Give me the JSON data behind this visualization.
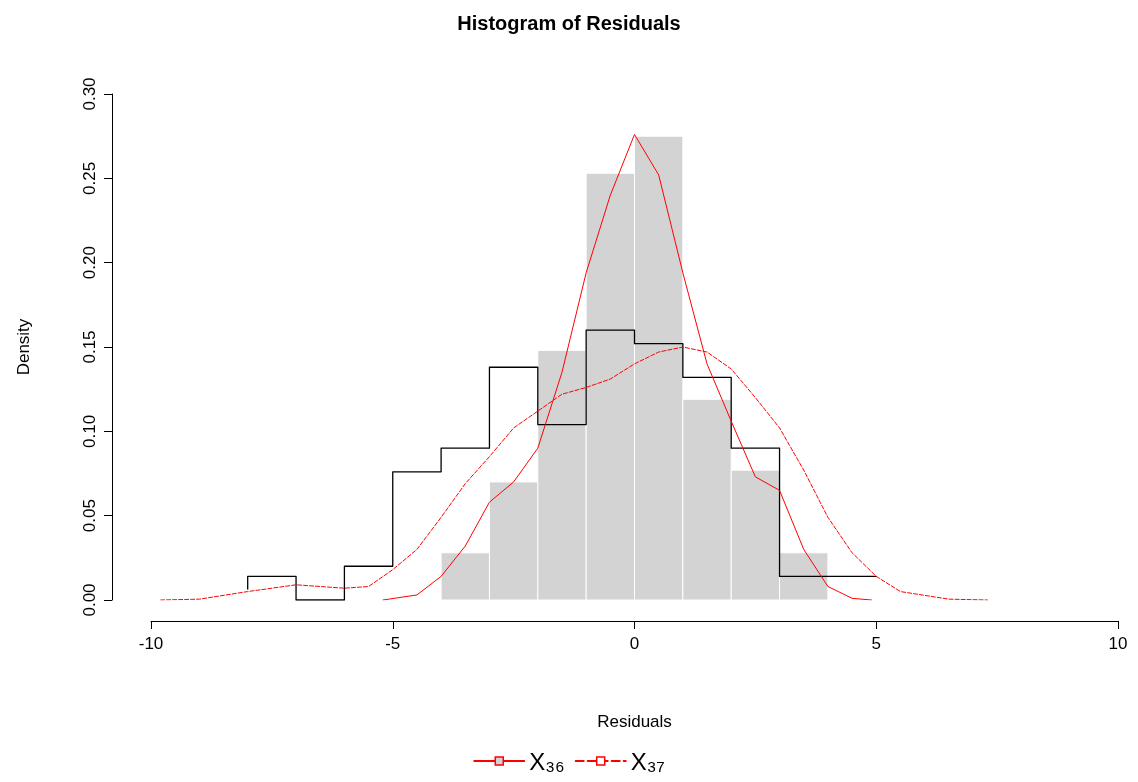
{
  "chart_data": {
    "type": "histogram",
    "title": "Histogram of Residuals",
    "xlabel": "Residuals",
    "ylabel": "Density",
    "xlim": [
      -10,
      10
    ],
    "xticks": [
      -10,
      -5,
      0,
      5,
      10
    ],
    "ylim": [
      0,
      0.3
    ],
    "yticks": [
      {
        "value": 0,
        "label": "0.00"
      },
      {
        "value": 0.05,
        "label": "0.05"
      },
      {
        "value": 0.1,
        "label": "0.10"
      },
      {
        "value": 0.15,
        "label": "0.15"
      },
      {
        "value": 0.2,
        "label": "0.20"
      },
      {
        "value": 0.25,
        "label": "0.25"
      },
      {
        "value": 0.3,
        "label": "0.30"
      }
    ],
    "grid": false,
    "legend": "bottom",
    "series": [
      {
        "color": "#d3d3d3",
        "bins": [
          -4,
          -3,
          -2,
          -1,
          0,
          1,
          2,
          3,
          4
        ],
        "values": [
          0.028,
          0.07,
          0.148,
          0.253,
          0.275,
          0.119,
          0.077,
          0.028
        ]
      },
      {
        "type": "step",
        "color": "#000000",
        "x": [
          -8,
          -7,
          -6,
          -5,
          -4,
          -3,
          -2,
          -1,
          0,
          1,
          2,
          3,
          4,
          5
        ],
        "values": [
          0.0065,
          0.014,
          0,
          0.02,
          0.076,
          0.09,
          0.138,
          0.104,
          0.16,
          0.152,
          0.132,
          0.09,
          0.014,
          0.014
        ]
      },
      {
        "type": "line",
        "name": "X₃₆",
        "color": "#ff0000",
        "line_style": "solid",
        "x": [
          -5.2,
          -4.5,
          -4,
          -3.5,
          -3,
          -2.5,
          -2,
          -1.5,
          -1,
          -0.5,
          0,
          0.5,
          1,
          1.5,
          2,
          2.5,
          3,
          3.5,
          4,
          4.5,
          4.9
        ],
        "values": [
          0,
          0.003,
          0.014,
          0.032,
          0.058,
          0.07,
          0.09,
          0.135,
          0.194,
          0.24,
          0.276,
          0.252,
          0.194,
          0.14,
          0.106,
          0.073,
          0.065,
          0.03,
          0.008,
          0.001,
          0
        ]
      },
      {
        "type": "line",
        "name": "X₃₇",
        "color": "#ff0000",
        "line_style": "dashed",
        "x": [
          -9.8,
          -9,
          -8,
          -7,
          -6,
          -5.5,
          -5,
          -4.5,
          -4,
          -3.5,
          -3,
          -2.5,
          -2,
          -1.5,
          -1,
          -0.5,
          0,
          0.5,
          1,
          1.5,
          2,
          2.5,
          3,
          3.5,
          4,
          4.5,
          5,
          5.5,
          6.5,
          7.3
        ],
        "values": [
          0,
          0.0005,
          0.005,
          0.009,
          0.007,
          0.008,
          0.018,
          0.03,
          0.049,
          0.069,
          0.085,
          0.102,
          0.112,
          0.122,
          0.126,
          0.131,
          0.14,
          0.147,
          0.15,
          0.147,
          0.137,
          0.12,
          0.102,
          0.077,
          0.049,
          0.028,
          0.014,
          0.005,
          0.0005,
          0
        ]
      }
    ]
  }
}
